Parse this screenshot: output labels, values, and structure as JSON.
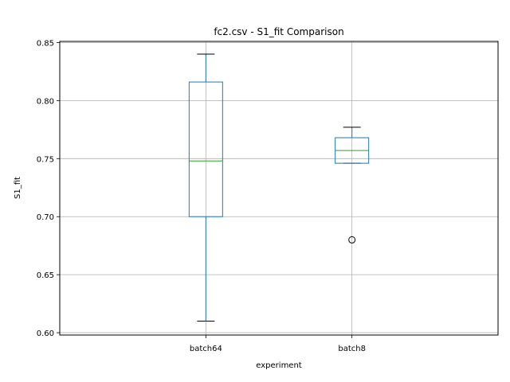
{
  "chart_data": {
    "type": "box",
    "title": "fc2.csv - S1_fit Comparison",
    "xlabel": "experiment",
    "ylabel": "S1_fit",
    "ylim": [
      0.598,
      0.851
    ],
    "yticks": [
      0.6,
      0.65,
      0.7,
      0.75,
      0.8,
      0.85
    ],
    "ytick_labels": [
      "0.60",
      "0.65",
      "0.70",
      "0.75",
      "0.80",
      "0.85"
    ],
    "grid": true,
    "categories": [
      "batch64",
      "batch8"
    ],
    "boxes": [
      {
        "category": "batch64",
        "whisker_low": 0.61,
        "q1": 0.7,
        "median": 0.748,
        "q3": 0.816,
        "whisker_high": 0.84,
        "outliers": []
      },
      {
        "category": "batch8",
        "whisker_low": 0.746,
        "q1": 0.746,
        "median": 0.757,
        "q3": 0.768,
        "whisker_high": 0.777,
        "outliers": [
          0.68
        ]
      }
    ],
    "colors": {
      "box": "#1f77b4",
      "median": "#2ca02c",
      "whisker": "#1f77b4",
      "cap": "#000000",
      "grid": "#b0b0b0"
    }
  }
}
